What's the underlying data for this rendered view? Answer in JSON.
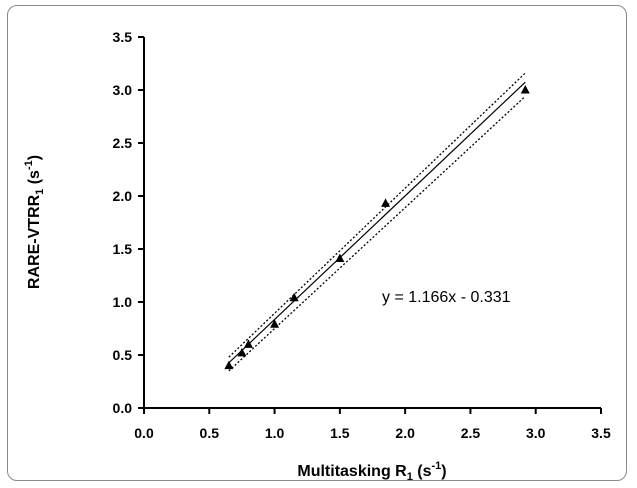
{
  "chart_data": {
    "type": "scatter",
    "title": "",
    "xlabel": {
      "main": "Multitasking R",
      "sub": "1",
      "unit_open": " (s",
      "unit_sup": "-1",
      "unit_close": ")"
    },
    "ylabel": {
      "main": "RARE-VTRR",
      "sub": "1",
      "unit_open": " (s",
      "unit_sup": "-1",
      "unit_close": ")"
    },
    "xlim": [
      0.0,
      3.5
    ],
    "ylim": [
      0.0,
      3.5
    ],
    "xticks": [
      "0.0",
      "0.5",
      "1.0",
      "1.5",
      "2.0",
      "2.5",
      "3.0",
      "3.5"
    ],
    "yticks": [
      "0.0",
      "0.5",
      "1.0",
      "1.5",
      "2.0",
      "2.5",
      "3.0",
      "3.5"
    ],
    "grid": false,
    "marker": "triangle",
    "series": [
      {
        "x": [
          0.65,
          0.75,
          0.8,
          1.0,
          1.15,
          1.5,
          1.85,
          2.92
        ],
        "y": [
          0.4,
          0.52,
          0.6,
          0.79,
          1.04,
          1.41,
          1.93,
          3.0
        ]
      }
    ],
    "fit": {
      "slope": 1.166,
      "intercept": -0.331,
      "x_range": [
        0.65,
        2.92
      ]
    },
    "confidence_band": {
      "x_range": [
        0.65,
        2.92
      ],
      "upper_y": [
        0.48,
        3.16
      ],
      "lower_y": [
        0.35,
        2.94
      ]
    },
    "equation": "y = 1.166x - 0.331"
  }
}
